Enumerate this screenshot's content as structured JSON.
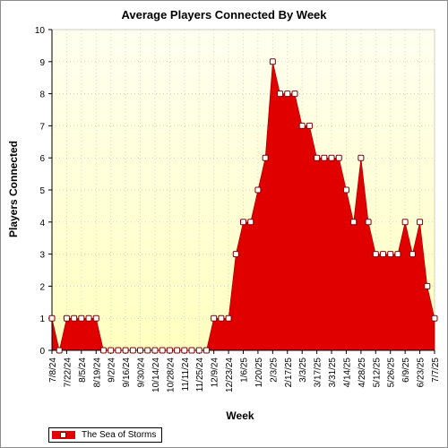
{
  "chart_data": {
    "type": "area",
    "title": "Average Players Connected By Week",
    "xlabel": "Week",
    "ylabel": "Players Connected",
    "ylim": [
      0,
      10
    ],
    "yticks": [
      "0",
      "1",
      "2",
      "3",
      "4",
      "5",
      "6",
      "7",
      "8",
      "9",
      "10"
    ],
    "grid": true,
    "legend_position": "bottom-left",
    "fill_color": "#e00000",
    "background_gradient": [
      "#fffff0",
      "#ffffc0"
    ],
    "x_tick_labels": [
      "7/8/24",
      "7/22/24",
      "8/5/24",
      "8/19/24",
      "9/2/24",
      "9/16/24",
      "9/30/24",
      "10/14/24",
      "10/28/24",
      "11/11/24",
      "11/25/24",
      "12/9/24",
      "12/23/24",
      "1/6/25",
      "1/20/25",
      "2/3/25",
      "2/17/25",
      "3/3/25",
      "3/17/25",
      "3/31/25",
      "4/14/25",
      "4/28/25",
      "5/12/25",
      "5/26/25",
      "6/9/25",
      "6/23/25",
      "7/7/25"
    ],
    "series": [
      {
        "name": "The Sea of Storms",
        "x": [
          "7/8/24",
          "7/15/24",
          "7/22/24",
          "7/29/24",
          "8/5/24",
          "8/12/24",
          "8/19/24",
          "8/26/24",
          "9/2/24",
          "9/9/24",
          "9/16/24",
          "9/23/24",
          "9/30/24",
          "10/7/24",
          "10/14/24",
          "10/21/24",
          "10/28/24",
          "11/4/24",
          "11/11/24",
          "11/18/24",
          "11/25/24",
          "12/2/24",
          "12/9/24",
          "12/16/24",
          "12/23/24",
          "12/30/24",
          "1/6/25",
          "1/13/25",
          "1/20/25",
          "1/27/25",
          "2/3/25",
          "2/10/25",
          "2/17/25",
          "2/24/25",
          "3/3/25",
          "3/10/25",
          "3/17/25",
          "3/24/25",
          "3/31/25",
          "4/7/25",
          "4/14/25",
          "4/21/25",
          "4/28/25",
          "5/5/25",
          "5/12/25",
          "5/19/25",
          "5/26/25",
          "6/2/25",
          "6/9/25",
          "6/16/25",
          "6/23/25",
          "6/30/25",
          "7/7/25"
        ],
        "values": [
          1,
          0,
          1,
          1,
          1,
          1,
          1,
          0,
          0,
          0,
          0,
          0,
          0,
          0,
          0,
          0,
          0,
          0,
          0,
          0,
          0,
          0,
          1,
          1,
          1,
          3,
          4,
          4,
          5,
          6,
          9,
          8,
          8,
          8,
          7,
          7,
          6,
          6,
          6,
          6,
          5,
          4,
          6,
          4,
          3,
          3,
          3,
          3,
          4,
          3,
          4,
          2,
          1
        ]
      }
    ]
  }
}
